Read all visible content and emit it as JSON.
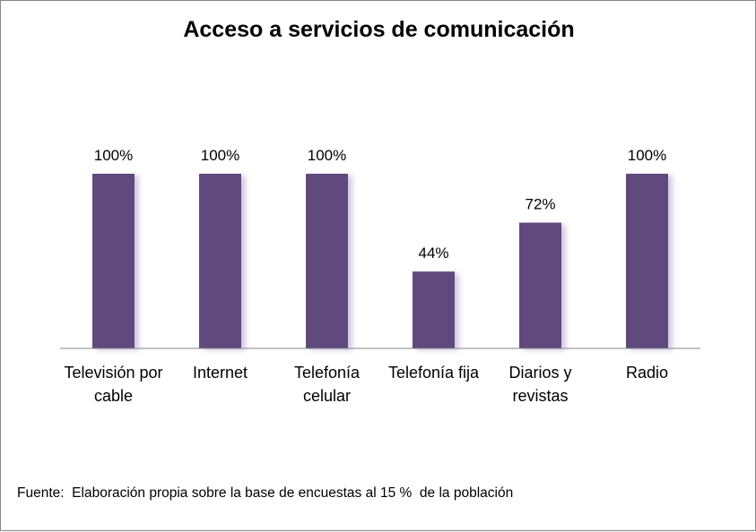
{
  "chart_data": {
    "type": "bar",
    "title": "Acceso a servicios de comunicación",
    "categories": [
      [
        "Televisión por",
        "cable"
      ],
      [
        "Internet"
      ],
      [
        "Telefonía",
        "celular"
      ],
      [
        "Telefonía fija"
      ],
      [
        "Diarios y",
        "revistas"
      ],
      [
        "Radio"
      ]
    ],
    "values": [
      100,
      100,
      100,
      44,
      72,
      100
    ],
    "value_labels": [
      "100%",
      "100%",
      "100%",
      "44%",
      "72%",
      "100%"
    ],
    "ylim": [
      0,
      100
    ],
    "xlabel": "",
    "ylabel": "",
    "grid": false,
    "legend": "none",
    "bar_color": "#604a7b"
  },
  "source_note": "Fuente:  Elaboración propia sobre la base de encuestas al 15 %  de la población"
}
